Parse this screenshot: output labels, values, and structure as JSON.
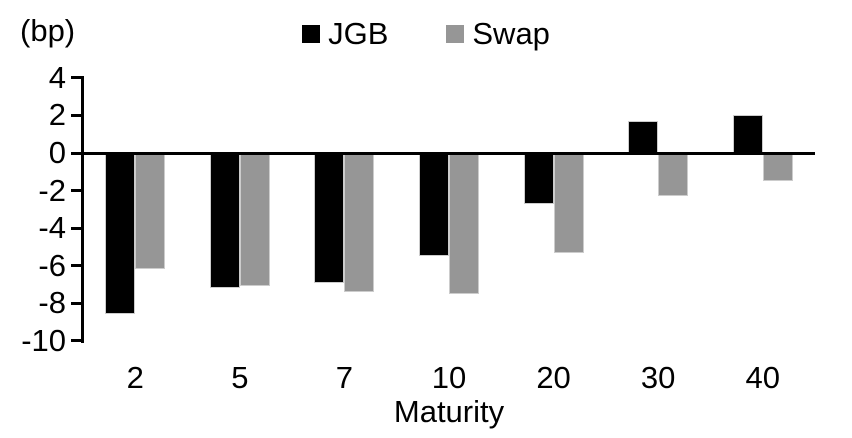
{
  "chart_data": {
    "type": "bar",
    "title": "",
    "unit_label": "(bp)",
    "xlabel": "Maturity",
    "ylabel": "",
    "categories": [
      "2",
      "5",
      "7",
      "10",
      "20",
      "30",
      "40"
    ],
    "series": [
      {
        "name": "JGB",
        "color": "#000000",
        "values": [
          -8.6,
          -7.2,
          -6.9,
          -5.5,
          -2.7,
          1.7,
          2.0
        ]
      },
      {
        "name": "Swap",
        "color": "#969696",
        "values": [
          -6.2,
          -7.1,
          -7.4,
          -7.5,
          -5.3,
          -2.3,
          -1.5
        ]
      }
    ],
    "y_ticks": [
      4,
      2,
      0,
      -2,
      -4,
      -6,
      -8,
      -10
    ],
    "ylim": [
      -10,
      4
    ],
    "legend_position": "top-center",
    "grid": false,
    "axis_color": "#000000"
  }
}
